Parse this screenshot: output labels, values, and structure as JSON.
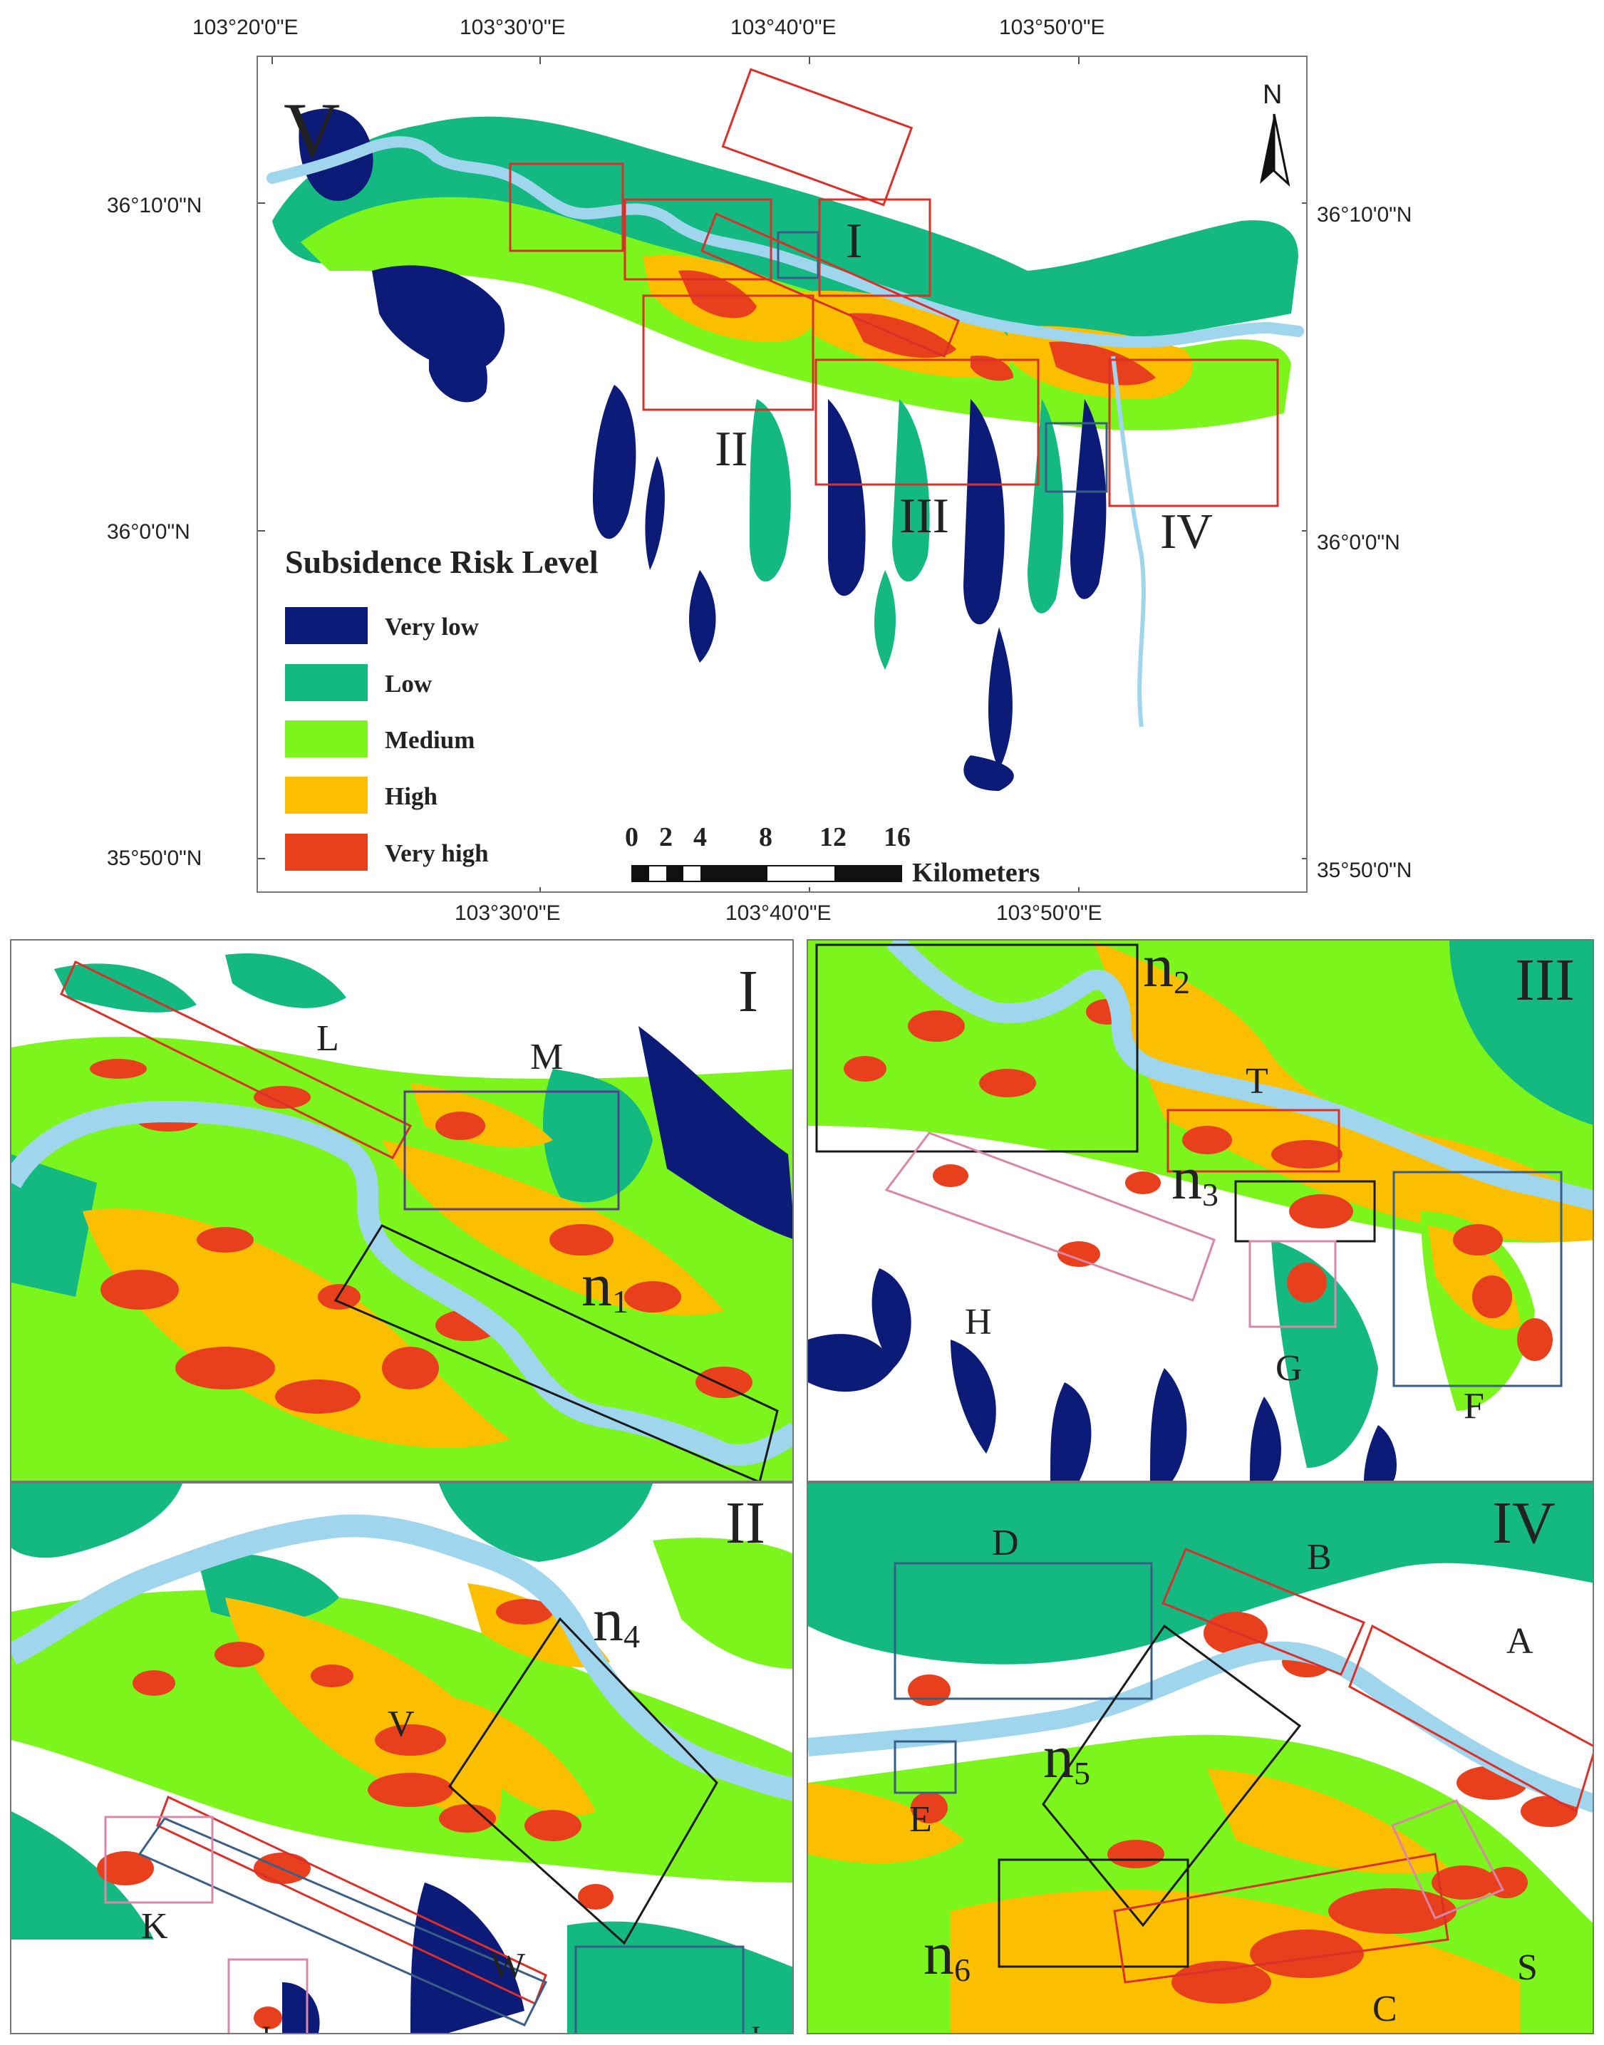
{
  "overview": {
    "title_label": "V",
    "region_labels": [
      "I",
      "II",
      "III",
      "IV"
    ],
    "north_label": "N",
    "lon_ticks_top": [
      "103°20'0\"E",
      "103°30'0\"E",
      "103°40'0\"E",
      "103°50'0\"E"
    ],
    "lon_ticks_bottom": [
      "103°30'0\"E",
      "103°40'0\"E",
      "103°50'0\"E"
    ],
    "lat_ticks_left": [
      "36°10'0\"N",
      "36°0'0\"N",
      "35°50'0\"N"
    ],
    "lat_ticks_right": [
      "36°10'0\"N",
      "36°0'0\"N",
      "35°50'0\"N"
    ]
  },
  "legend": {
    "title": "Subsidence Risk Level",
    "items": [
      {
        "label": "Very low",
        "color": "#0c1a78"
      },
      {
        "label": "Low",
        "color": "#14b881"
      },
      {
        "label": "Medium",
        "color": "#7bf51b"
      },
      {
        "label": "High",
        "color": "#fbbf00"
      },
      {
        "label": "Very high",
        "color": "#e8401c"
      }
    ]
  },
  "scale_bar": {
    "ticks": [
      "0",
      "2",
      "4",
      "8",
      "12",
      "16"
    ],
    "unit": "Kilometers"
  },
  "panels": {
    "I": {
      "title": "I",
      "labels": [
        "L",
        "M"
      ],
      "n_labels": [
        {
          "base": "n",
          "sub": "1"
        }
      ]
    },
    "III": {
      "title": "III",
      "labels": [
        "T",
        "H",
        "G",
        "F"
      ],
      "n_labels": [
        {
          "base": "n",
          "sub": "2"
        },
        {
          "base": "n",
          "sub": "3"
        }
      ]
    },
    "II": {
      "title": "II",
      "labels": [
        "V",
        "K",
        "W",
        "J",
        "I"
      ],
      "n_labels": [
        {
          "base": "n",
          "sub": "4"
        }
      ]
    },
    "IV": {
      "title": "IV",
      "labels": [
        "D",
        "B",
        "A",
        "E",
        "S",
        "C"
      ],
      "n_labels": [
        {
          "base": "n",
          "sub": "5"
        },
        {
          "base": "n",
          "sub": "6"
        }
      ]
    }
  },
  "colors": {
    "river": "#9fd6ee",
    "box_red": "#d9302a",
    "box_black": "#1a1a1a",
    "box_blue": "#3a5f86",
    "box_pink": "#d987a8",
    "box_purple": "#5b3f8e"
  }
}
